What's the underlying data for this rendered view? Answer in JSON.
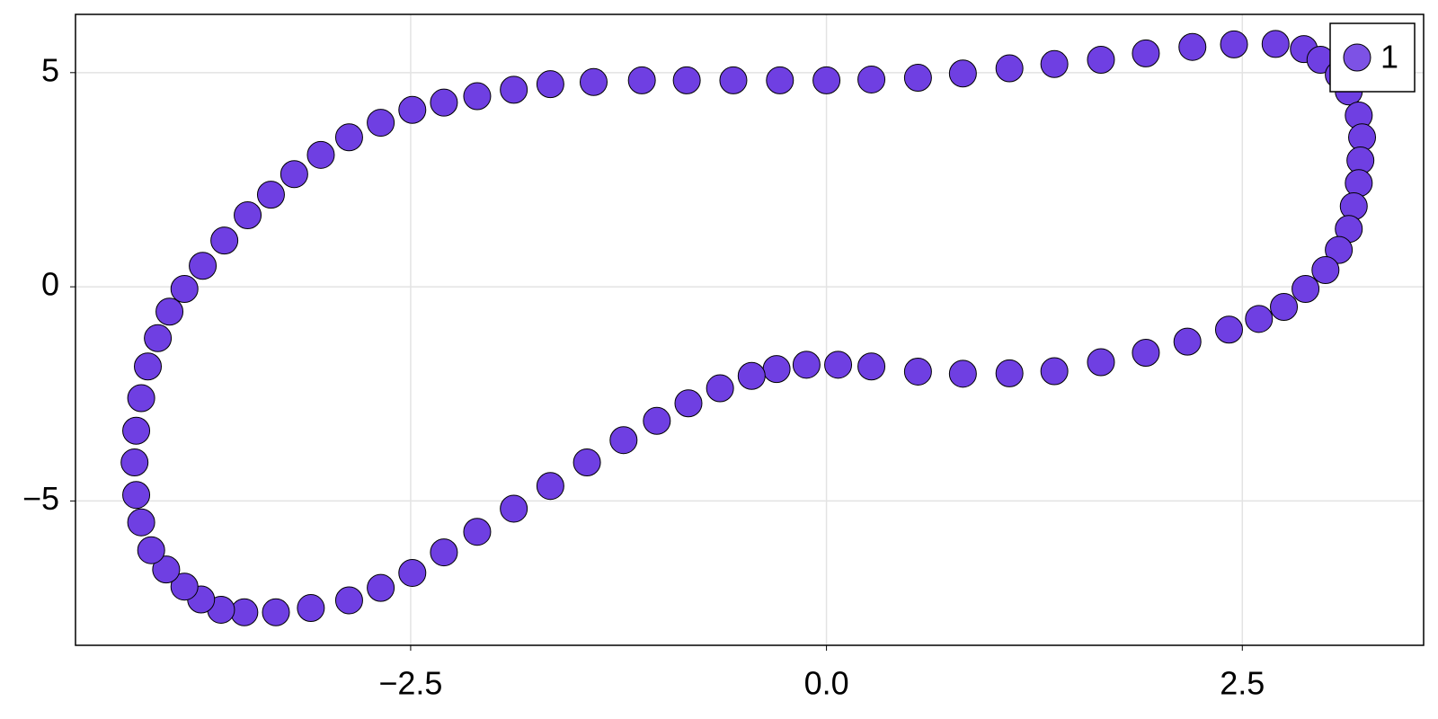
{
  "chart_data": {
    "type": "scatter",
    "series": [
      {
        "name": "1",
        "color": "#6f3fe2",
        "x": [
          0,
          0.27,
          0.55,
          0.82,
          1.1,
          1.37,
          1.65,
          1.92,
          2.2,
          2.45,
          2.7,
          2.87,
          2.97,
          3.08,
          3.14,
          3.2,
          3.22,
          3.21,
          3.2,
          3.17,
          3.14,
          3.08,
          3.0,
          2.88,
          2.75,
          2.6,
          2.42,
          2.17,
          1.92,
          1.65,
          1.37,
          1.1,
          0.82,
          0.55,
          0.27,
          0.07,
          -0.12,
          -0.3,
          -0.45,
          -0.64,
          -0.83,
          -1.02,
          -1.22,
          -1.44,
          -1.66,
          -1.88,
          -2.1,
          -2.3,
          -2.49,
          -2.68,
          -2.87,
          -3.1,
          -3.31,
          -3.5,
          -3.64,
          -3.76,
          -3.86,
          -3.97,
          -4.06,
          -4.12,
          -4.15,
          -4.16,
          -4.15,
          -4.12,
          -4.08,
          -4.02,
          -3.95,
          -3.86,
          -3.75,
          -3.62,
          -3.48,
          -3.34,
          -3.2,
          -3.04,
          -2.87,
          -2.68,
          -2.49,
          -2.3,
          -2.1,
          -1.88,
          -1.66,
          -1.4,
          -1.11,
          -0.84,
          -0.56,
          -0.28
        ],
        "y": [
          4.82,
          4.84,
          4.88,
          4.98,
          5.1,
          5.2,
          5.3,
          5.45,
          5.6,
          5.66,
          5.67,
          5.55,
          5.3,
          4.95,
          4.56,
          4.0,
          3.49,
          2.95,
          2.42,
          1.88,
          1.35,
          0.86,
          0.39,
          -0.05,
          -0.47,
          -0.75,
          -1.0,
          -1.28,
          -1.54,
          -1.76,
          -1.97,
          -2.02,
          -2.03,
          -1.98,
          -1.86,
          -1.82,
          -1.82,
          -1.92,
          -2.08,
          -2.37,
          -2.72,
          -3.13,
          -3.58,
          -4.1,
          -4.65,
          -5.18,
          -5.72,
          -6.2,
          -6.68,
          -7.03,
          -7.32,
          -7.5,
          -7.6,
          -7.6,
          -7.54,
          -7.3,
          -7.0,
          -6.6,
          -6.15,
          -5.5,
          -4.86,
          -4.1,
          -3.36,
          -2.6,
          -1.86,
          -1.2,
          -0.58,
          -0.05,
          0.49,
          1.08,
          1.67,
          2.15,
          2.63,
          3.08,
          3.49,
          3.83,
          4.13,
          4.3,
          4.45,
          4.6,
          4.73,
          4.78,
          4.82,
          4.82,
          4.82,
          4.82
        ]
      }
    ],
    "xlim": [
      -4.515,
      3.59
    ],
    "ylim": [
      -8.37,
      6.36
    ],
    "xticks": [
      {
        "value": -2.5,
        "label": "−2.5"
      },
      {
        "value": 0,
        "label": "0.0"
      },
      2.5
    ],
    "yticks": [
      {
        "value": -5,
        "label": "−5"
      },
      0,
      5
    ],
    "grid": true,
    "legend": "top right"
  }
}
